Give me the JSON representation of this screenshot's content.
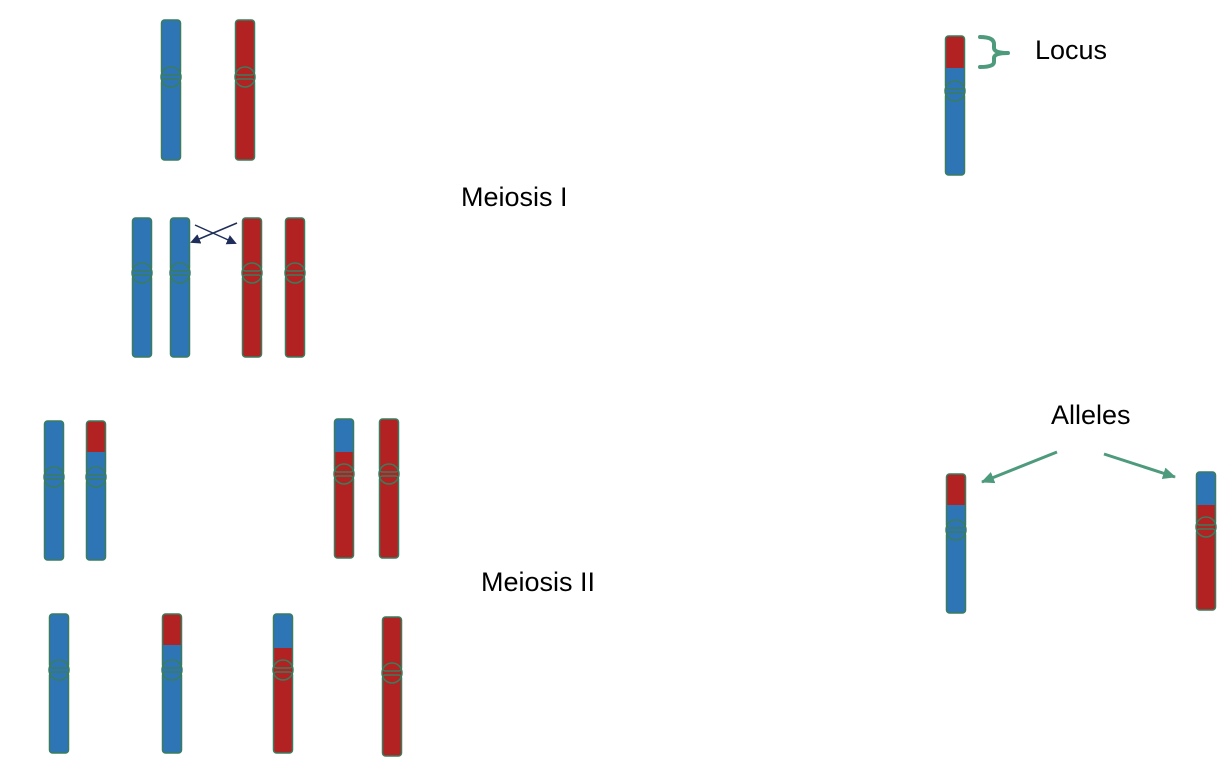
{
  "labels": {
    "meiosis_1": "Meiosis I",
    "meiosis_2": "Meiosis II",
    "locus": "Locus",
    "alleles": "Alleles"
  },
  "colors": {
    "blue": "#2E75B6",
    "red": "#B22222",
    "outline": "#3A7D5E",
    "annotation": "#4E9A7D",
    "crossover_arrow": "#1F2D5A"
  },
  "icons": {
    "crossover": "crossover-arrows-icon",
    "locus_bracket": "curly-brace-icon",
    "allele_pointer": "arrow-icon"
  }
}
